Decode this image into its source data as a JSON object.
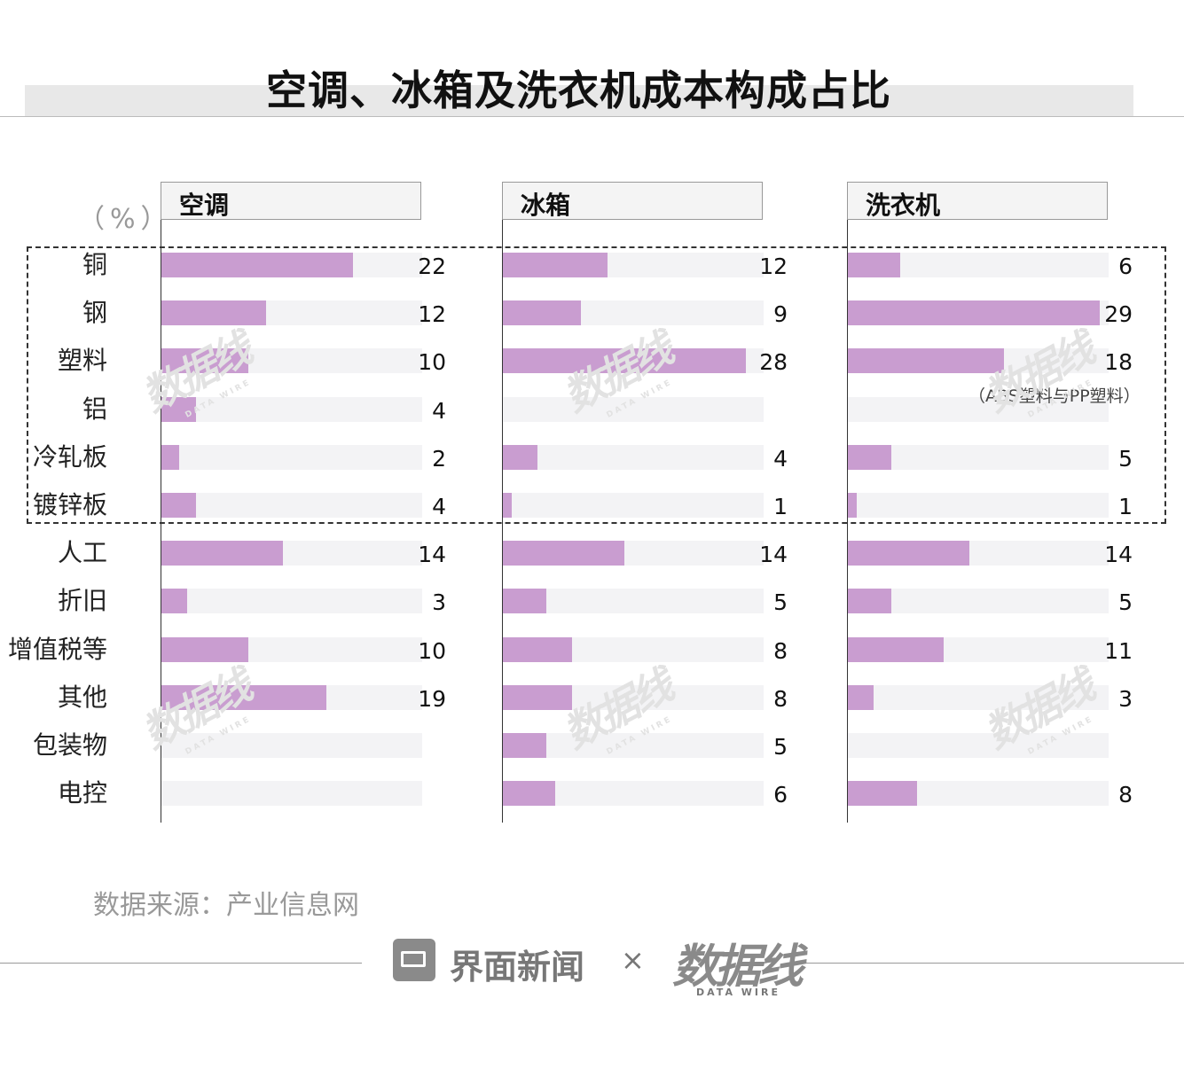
{
  "title": "空调、冰箱及洗衣机成本构成占比",
  "unit_label": "（%）",
  "chart_data": {
    "type": "bar",
    "title": "空调、冰箱及洗衣机成本构成占比",
    "unit": "（%）",
    "categories": [
      "铜",
      "钢",
      "塑料",
      "铝",
      "冷轧板",
      "镀锌板",
      "人工",
      "折旧",
      "增值税等",
      "其他",
      "包装物",
      "电控"
    ],
    "series": [
      {
        "name": "空调",
        "values": [
          22,
          12,
          10,
          4,
          2,
          4,
          14,
          3,
          10,
          19,
          null,
          null
        ]
      },
      {
        "name": "冰箱",
        "values": [
          12,
          9,
          28,
          null,
          4,
          1,
          14,
          5,
          8,
          8,
          5,
          6
        ]
      },
      {
        "name": "洗衣机",
        "values": [
          6,
          29,
          18,
          null,
          5,
          1,
          14,
          5,
          11,
          3,
          null,
          8
        ]
      }
    ],
    "xlim": [
      0,
      30
    ],
    "annotations": [
      {
        "series": "洗衣机",
        "category": "塑料",
        "text": "（ABS塑料与PP塑料）"
      }
    ],
    "highlight_group": [
      "铜",
      "钢",
      "塑料",
      "铝",
      "冷轧板",
      "镀锌板"
    ],
    "bar_color": "#c99dd0",
    "track_color": "#f3f3f5"
  },
  "source": "数据来源：产业信息网",
  "footer": {
    "brand": "界面新闻",
    "times": "×",
    "partner": "数据线",
    "partner_sub": "DATA WIRE"
  }
}
